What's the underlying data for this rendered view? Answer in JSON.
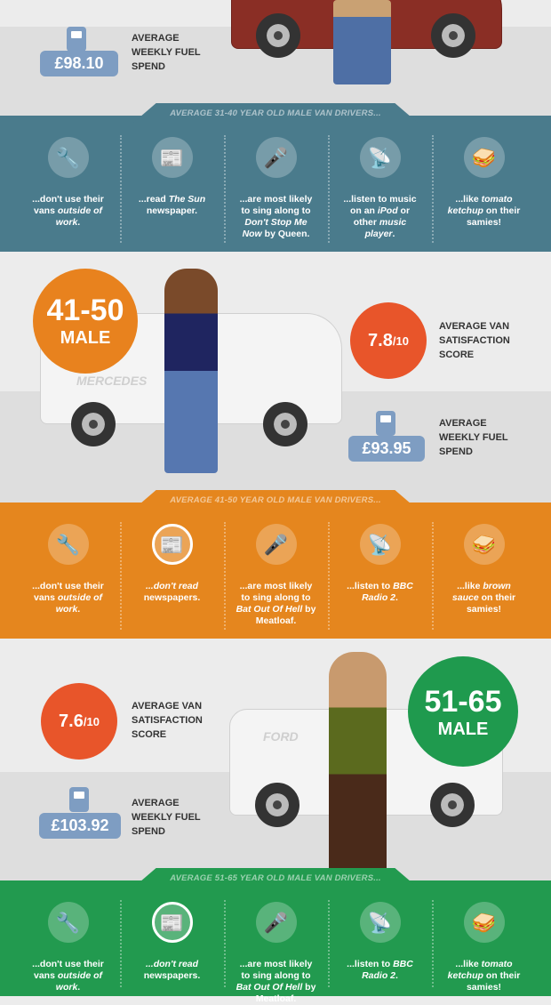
{
  "colors": {
    "teal": "#4a7b8c",
    "orange": "#e5861e",
    "green": "#229a4f",
    "age_orange": "#e8821e",
    "age_green": "#1f9a4e",
    "badge_red": "#e8552a",
    "fuel_blue": "#7e9dc2"
  },
  "group1": {
    "fuel_value": "£98.10",
    "fuel_label": "AVERAGE WEEKLY FUEL SPEND"
  },
  "group2": {
    "age": "41-50",
    "gender": "MALE",
    "van_brand": "MERCEDES",
    "score": "7.8",
    "score_of": "/10",
    "score_label": "AVERAGE VAN SATISFACTION SCORE",
    "fuel_value": "£93.95",
    "fuel_label": "AVERAGE WEEKLY FUEL SPEND"
  },
  "group3": {
    "age": "51-65",
    "gender": "MALE",
    "van_brand": "FORD",
    "score": "7.6",
    "score_of": "/10",
    "score_label": "AVERAGE VAN SATISFACTION SCORE",
    "fuel_value": "£103.92",
    "fuel_label": "AVERAGE WEEKLY FUEL SPEND"
  },
  "bands": [
    {
      "title": "AVERAGE 31-40 YEAR OLD MALE VAN DRIVERS...",
      "color": "#4a7b8c",
      "items": [
        {
          "icon": "drill-icon",
          "text": [
            {
              "t": "...don't use their vans "
            },
            {
              "t": "outside of work",
              "i": true
            },
            {
              "t": "."
            }
          ]
        },
        {
          "icon": "newspaper-icon",
          "text": [
            {
              "t": "...read "
            },
            {
              "t": "The Sun",
              "i": true
            },
            {
              "t": " newspaper."
            }
          ]
        },
        {
          "icon": "microphone-icon",
          "text": [
            {
              "t": "...are most likely to sing along to "
            },
            {
              "t": "Don't Stop Me Now",
              "i": true
            },
            {
              "t": " by Queen."
            }
          ]
        },
        {
          "icon": "satellite-dish-icon",
          "text": [
            {
              "t": "...listen to music on an "
            },
            {
              "t": "iPod",
              "i": true
            },
            {
              "t": " or other "
            },
            {
              "t": "music player",
              "i": true
            },
            {
              "t": "."
            }
          ]
        },
        {
          "icon": "sandwich-icon",
          "text": [
            {
              "t": "...like "
            },
            {
              "t": "tomato ketchup",
              "i": true
            },
            {
              "t": " on their samies!"
            }
          ]
        }
      ]
    },
    {
      "title": "AVERAGE 41-50 YEAR OLD MALE VAN DRIVERS...",
      "color": "#e5861e",
      "items": [
        {
          "icon": "drill-icon",
          "text": [
            {
              "t": "...don't use their vans "
            },
            {
              "t": "outside of work",
              "i": true
            },
            {
              "t": "."
            }
          ]
        },
        {
          "icon": "no-newspaper-icon",
          "text": [
            {
              "t": "...don't read",
              "i": true
            },
            {
              "t": " newspapers."
            }
          ]
        },
        {
          "icon": "microphone-icon",
          "text": [
            {
              "t": "...are most likely to sing along to "
            },
            {
              "t": "Bat Out Of Hell",
              "i": true
            },
            {
              "t": " by Meatloaf."
            }
          ]
        },
        {
          "icon": "satellite-dish-icon",
          "text": [
            {
              "t": "...listen to "
            },
            {
              "t": "BBC Radio 2",
              "i": true
            },
            {
              "t": "."
            }
          ]
        },
        {
          "icon": "sandwich-icon",
          "text": [
            {
              "t": "...like "
            },
            {
              "t": "brown sauce",
              "i": true
            },
            {
              "t": " on their samies!"
            }
          ]
        }
      ]
    },
    {
      "title": "AVERAGE 51-65 YEAR OLD MALE VAN DRIVERS...",
      "color": "#229a4f",
      "items": [
        {
          "icon": "drill-icon",
          "text": [
            {
              "t": "...don't use their vans "
            },
            {
              "t": "outside of work",
              "i": true
            },
            {
              "t": "."
            }
          ]
        },
        {
          "icon": "no-newspaper-icon",
          "text": [
            {
              "t": "...don't read",
              "i": true
            },
            {
              "t": " newspapers."
            }
          ]
        },
        {
          "icon": "microphone-icon",
          "text": [
            {
              "t": "...are most likely to sing along to "
            },
            {
              "t": "Bat Out Of Hell",
              "i": true
            },
            {
              "t": " by Meatloaf."
            }
          ]
        },
        {
          "icon": "satellite-dish-icon",
          "text": [
            {
              "t": "...listen to "
            },
            {
              "t": "BBC Radio 2",
              "i": true
            },
            {
              "t": "."
            }
          ]
        },
        {
          "icon": "sandwich-icon",
          "text": [
            {
              "t": "...like "
            },
            {
              "t": "tomato ketchup",
              "i": true
            },
            {
              "t": " on their samies!"
            }
          ]
        }
      ]
    }
  ]
}
